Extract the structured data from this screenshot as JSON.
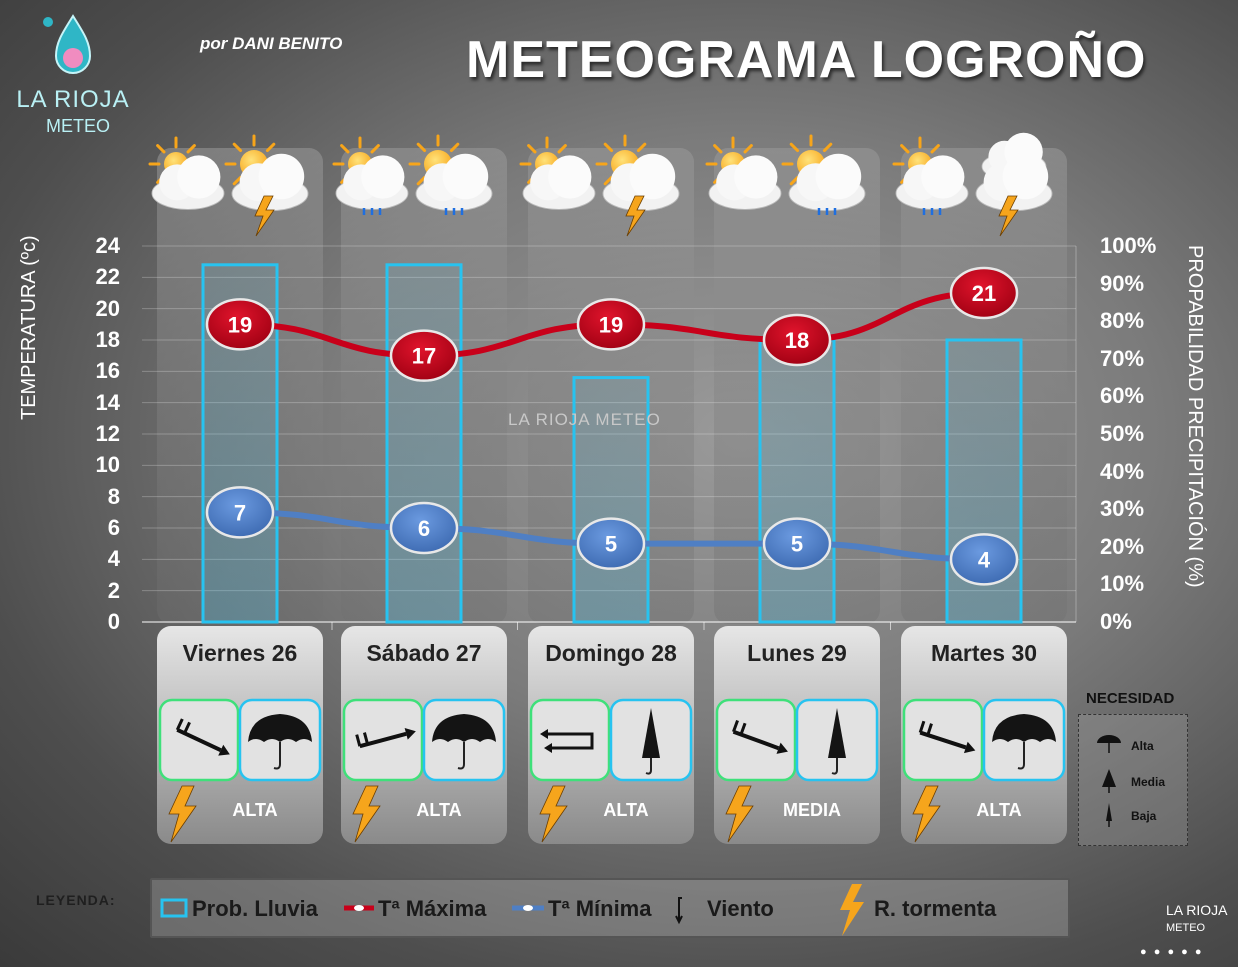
{
  "header": {
    "brand_name": "LA RIOJA",
    "brand_sub": "METEO",
    "byline": "por DANI BENITO",
    "title": "METEOGRAMA LOGROÑO"
  },
  "watermark": "LA RIOJA METEO",
  "colors": {
    "max": "#c8001a",
    "min": "#4f7fc4",
    "rain": "#27c3f0",
    "storm": "#f6a51c"
  },
  "chart_data": {
    "type": "bar+line",
    "categories": [
      "Viernes 26",
      "Sábado 27",
      "Domingo 28",
      "Lunes 29",
      "Martes 30"
    ],
    "series": [
      {
        "name": "Prob. Lluvia",
        "type": "bar",
        "axis": "right",
        "values": [
          95,
          95,
          65,
          75,
          75
        ]
      },
      {
        "name": "Tª Máxima",
        "type": "line",
        "axis": "left",
        "values": [
          19,
          17,
          19,
          18,
          21
        ]
      },
      {
        "name": "Tª Mínima",
        "type": "line",
        "axis": "left",
        "values": [
          7,
          6,
          5,
          5,
          4
        ]
      }
    ],
    "y_left": {
      "label": "TEMPERATURA (ºc)",
      "min": 0,
      "max": 24,
      "ticks": [
        "0",
        "2",
        "4",
        "6",
        "8",
        "10",
        "12",
        "14",
        "16",
        "18",
        "20",
        "22",
        "24"
      ]
    },
    "y_right": {
      "label": "PROPABILIDAD PRECIPITACIÓN (%)",
      "min": 0,
      "max": 100,
      "ticks": [
        "0%",
        "10%",
        "20%",
        "30%",
        "40%",
        "50%",
        "60%",
        "70%",
        "80%",
        "90%",
        "100%"
      ]
    }
  },
  "days": [
    {
      "label": "Viernes 26",
      "storm": "ALTA",
      "wind": "wind-arrow-icon",
      "umbrella": "umbrella-open-icon"
    },
    {
      "label": "Sábado 27",
      "storm": "ALTA",
      "wind": "wind-arrow-icon",
      "umbrella": "umbrella-open-icon"
    },
    {
      "label": "Domingo 28",
      "storm": "ALTA",
      "wind": "wind-variable-icon",
      "umbrella": "umbrella-closed-icon"
    },
    {
      "label": "Lunes 29",
      "storm": "MEDIA",
      "wind": "wind-arrow-icon",
      "umbrella": "umbrella-closed-icon"
    },
    {
      "label": "Martes 30",
      "storm": "ALTA",
      "wind": "wind-arrow-icon",
      "umbrella": "umbrella-open-icon"
    }
  ],
  "necesidad": {
    "title": "NECESIDAD",
    "items": [
      "Alta",
      "Media",
      "Baja"
    ]
  },
  "legend": {
    "title": "LEYENDA:",
    "rain": "Prob. Lluvia",
    "max": "Tª Máxima",
    "min": "Tª Mínima",
    "wind": "Viento",
    "storm": "R. tormenta"
  },
  "footer": {
    "brand": "LA RIOJA",
    "sub": "METEO"
  }
}
